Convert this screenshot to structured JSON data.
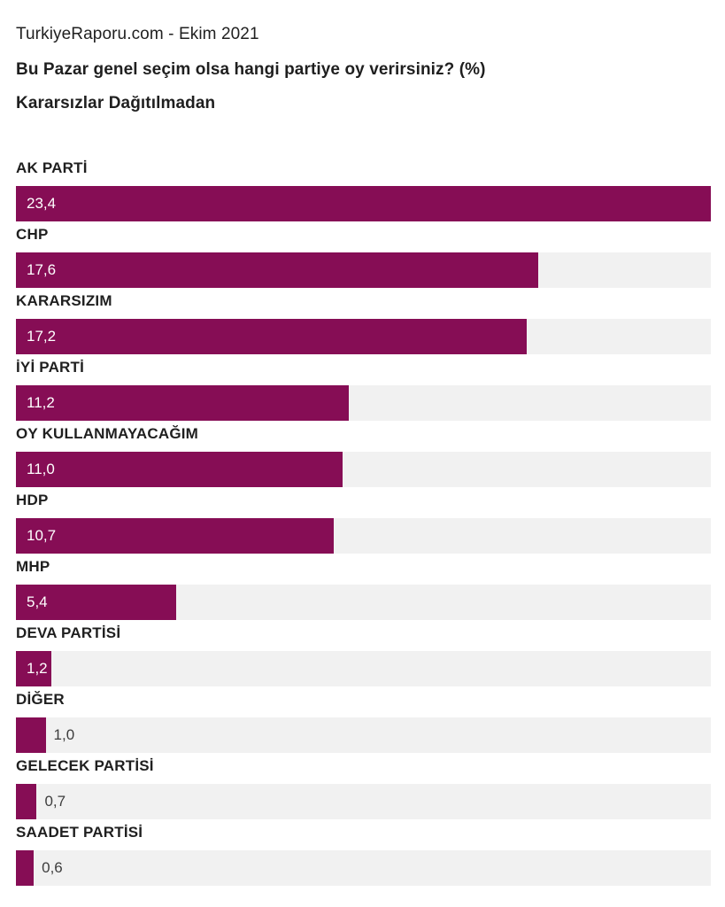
{
  "header": {
    "source": "TurkiyeRaporu.com - Ekim 2021",
    "question": "Bu Pazar genel seçim olsa hangi partiye oy verirsiniz? (%)",
    "subtitle": "Kararsızlar Dağıtılmadan"
  },
  "colors": {
    "background": "#ffffff",
    "bar": "#860d55",
    "track": "#f1f1f1",
    "label": "#1f1f1f",
    "header_text": "#212121",
    "value_inside": "#ffffff",
    "value_outside": "#3d3d3d"
  },
  "chart_data": {
    "type": "bar",
    "orientation": "horizontal",
    "title": "Bu Pazar genel seçim olsa hangi partiye oy verirsiniz? (%)",
    "subtitle": "Kararsızlar Dağıtılmadan",
    "source": "TurkiyeRaporu.com - Ekim 2021",
    "xlabel": "",
    "ylabel": "",
    "xlim": [
      0,
      23.4
    ],
    "grid": false,
    "legend": false,
    "value_format": "comma-decimal",
    "categories": [
      "AK PARTİ",
      "CHP",
      "KARARSIZIM",
      "İYİ PARTİ",
      "OY KULLANMAYACAĞIM",
      "HDP",
      "MHP",
      "DEVA PARTİSİ",
      "DİĞER",
      "GELECEK PARTİSİ",
      "SAADET PARTİSİ"
    ],
    "values": [
      23.4,
      17.6,
      17.2,
      11.2,
      11.0,
      10.7,
      5.4,
      1.2,
      1.0,
      0.7,
      0.6
    ],
    "value_labels": [
      "23,4",
      "17,6",
      "17,2",
      "11,2",
      "11,0",
      "10,7",
      "5,4",
      "1,2",
      "1,0",
      "0,7",
      "0,6"
    ]
  }
}
